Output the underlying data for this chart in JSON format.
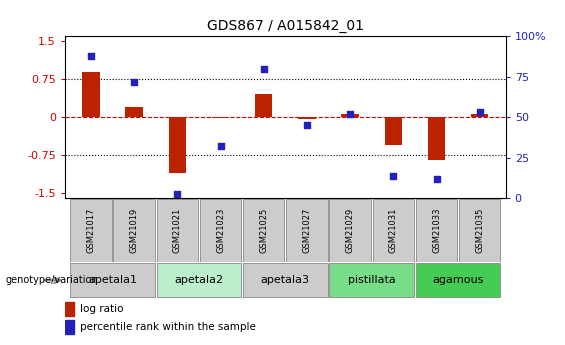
{
  "title": "GDS867 / A015842_01",
  "samples": [
    "GSM21017",
    "GSM21019",
    "GSM21021",
    "GSM21023",
    "GSM21025",
    "GSM21027",
    "GSM21029",
    "GSM21031",
    "GSM21033",
    "GSM21035"
  ],
  "log_ratio": [
    0.9,
    0.2,
    -1.1,
    -0.02,
    0.45,
    -0.03,
    0.07,
    -0.55,
    -0.85,
    0.07
  ],
  "percentile_rank": [
    88,
    72,
    3,
    32,
    80,
    45,
    52,
    14,
    12,
    53
  ],
  "ylim_left": [
    -1.6,
    1.6
  ],
  "ylim_right": [
    0,
    100
  ],
  "yticks_left": [
    -1.5,
    -0.75,
    0.0,
    0.75,
    1.5
  ],
  "yticks_right": [
    0,
    25,
    50,
    75,
    100
  ],
  "hlines_dotted": [
    0.75,
    -0.75
  ],
  "hline_dashed_red": 0.0,
  "bar_color": "#bb2200",
  "square_color": "#2222bb",
  "groups": [
    {
      "name": "apetala1",
      "samples": [
        "GSM21017",
        "GSM21019"
      ],
      "color": "#cccccc"
    },
    {
      "name": "apetala2",
      "samples": [
        "GSM21021",
        "GSM21023"
      ],
      "color": "#bbeecc"
    },
    {
      "name": "apetala3",
      "samples": [
        "GSM21025",
        "GSM21027"
      ],
      "color": "#cccccc"
    },
    {
      "name": "pistillata",
      "samples": [
        "GSM21029",
        "GSM21031"
      ],
      "color": "#77dd88"
    },
    {
      "name": "agamous",
      "samples": [
        "GSM21033",
        "GSM21035"
      ],
      "color": "#44cc55"
    }
  ],
  "legend_bar_label": "log ratio",
  "legend_sq_label": "percentile rank within the sample",
  "genotype_label": "genotype/variation",
  "title_fontsize": 10,
  "tick_fontsize": 8,
  "sample_fontsize": 6,
  "group_fontsize": 8
}
